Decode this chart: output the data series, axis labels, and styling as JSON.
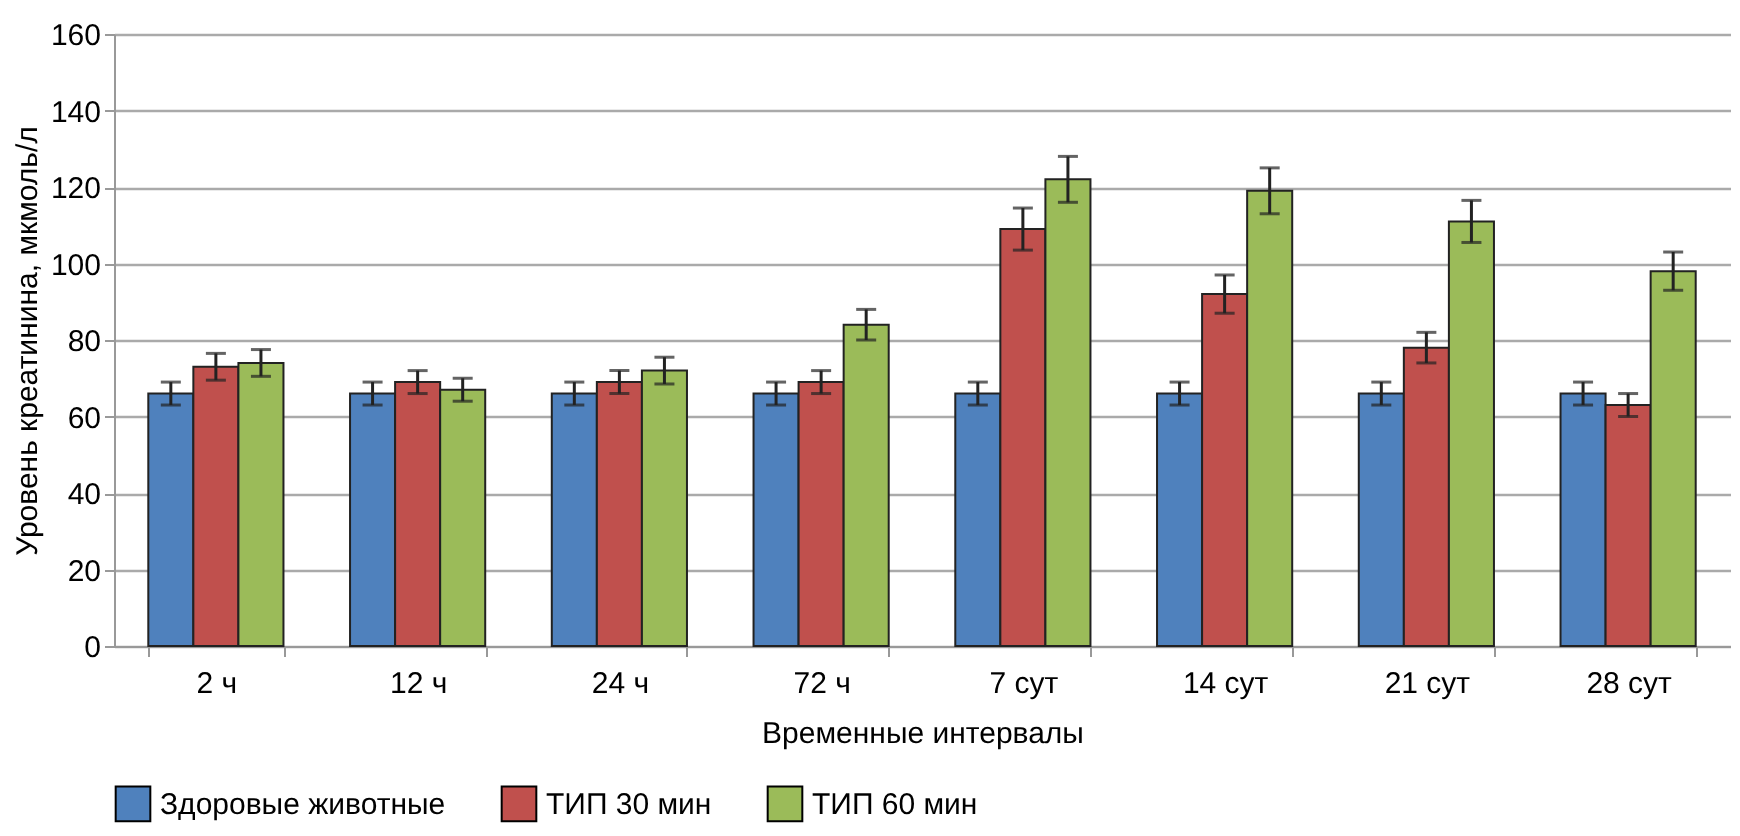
{
  "chart_data": {
    "type": "bar",
    "xlabel": "Временные интервалы",
    "ylabel": "Уровень креатинина, мкмоль/л",
    "categories": [
      "2 ч",
      "12 ч",
      "24 ч",
      "72 ч",
      "7 сут",
      "14 сут",
      "21 сут",
      "28 сут"
    ],
    "series": [
      {
        "name": "Здоровые животные",
        "color": "#4f81bd",
        "values": [
          66,
          66,
          66,
          66,
          66,
          66,
          66,
          66
        ],
        "errors": [
          3,
          3,
          3,
          3,
          3,
          3,
          3,
          3
        ]
      },
      {
        "name": "ТИП 30 мин",
        "color": "#c0504d",
        "values": [
          73,
          69,
          69,
          69,
          109,
          92,
          78,
          63
        ],
        "errors": [
          3.5,
          3,
          3,
          3,
          5.5,
          5,
          4,
          3
        ]
      },
      {
        "name": "ТИП 60 мин",
        "color": "#9bbb59",
        "values": [
          74,
          67,
          72,
          84,
          122,
          119,
          111,
          98
        ],
        "errors": [
          3.5,
          3,
          3.5,
          4,
          6,
          6,
          5.5,
          5
        ]
      }
    ],
    "ylim": [
      0,
      160
    ],
    "yticks": [
      0,
      20,
      40,
      60,
      80,
      100,
      120,
      140,
      160
    ],
    "grid": "y",
    "legend": "bottom"
  }
}
